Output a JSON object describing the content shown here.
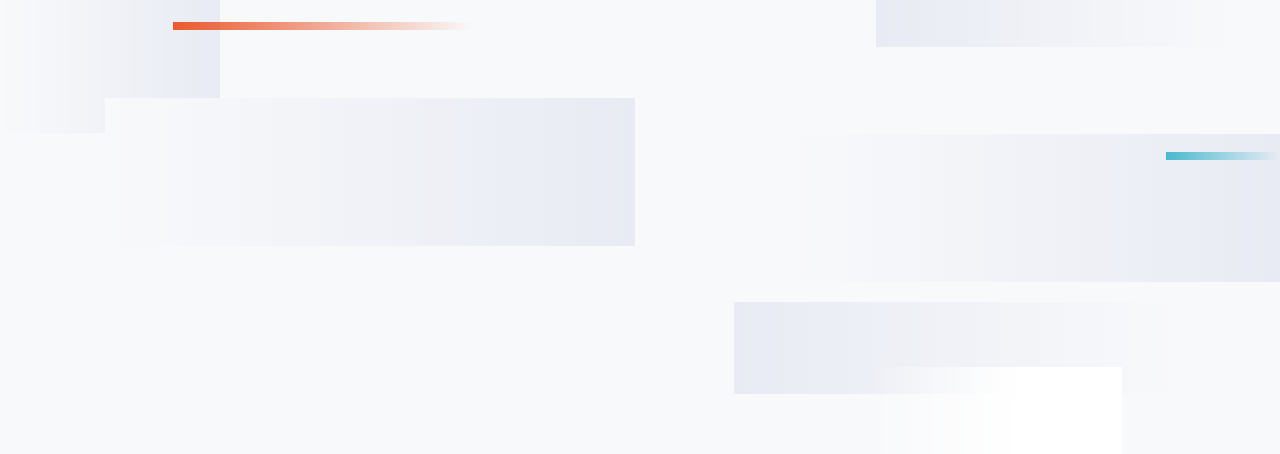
{
  "theme": {
    "background": "#f8f9fb",
    "panel_tint": "#e8ebf3",
    "accent_orange": "#ea5a2f",
    "accent_teal": "#4ab8cf",
    "highlight": "#ffffff"
  }
}
